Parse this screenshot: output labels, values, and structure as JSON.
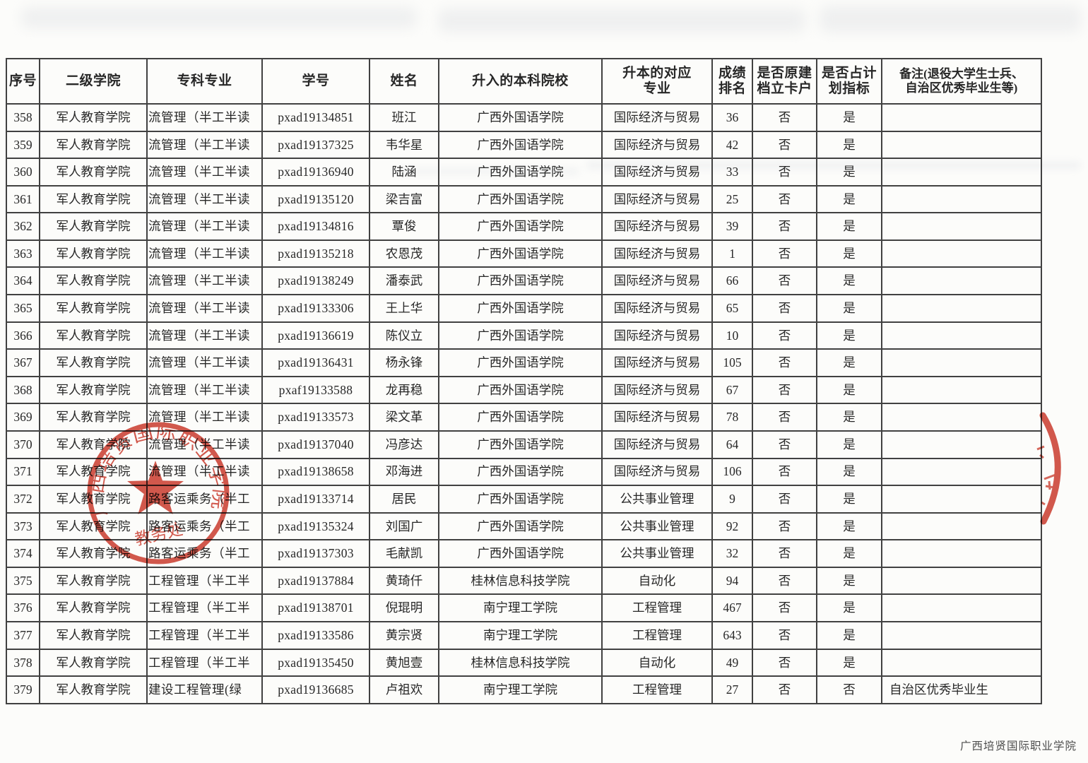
{
  "page": {
    "footer_watermark": "广西培贤国际职业学院",
    "paper_color": "#fcfcfa",
    "line_color": "#414141",
    "seal_color": "#cc392b"
  },
  "stamp": {
    "ring_text": "广西培贤国际职业学院",
    "department": "教务处"
  },
  "table": {
    "headers": [
      "序号",
      "二级学院",
      "专科专业",
      "学号",
      "姓名",
      "升入的本科院校",
      "升本的对应\n专业",
      "成绩\n排名",
      "是否原建\n档立卡户",
      "是否占计\n划指标",
      "备注(退役大学生士兵、\n自治区优秀毕业生等)"
    ],
    "rows": [
      [
        "358",
        "军人教育学院",
        "流管理（半工半读",
        "pxad19134851",
        "班江",
        "广西外国语学院",
        "国际经济与贸易",
        "36",
        "否",
        "是",
        ""
      ],
      [
        "359",
        "军人教育学院",
        "流管理（半工半读",
        "pxad19137325",
        "韦华星",
        "广西外国语学院",
        "国际经济与贸易",
        "42",
        "否",
        "是",
        ""
      ],
      [
        "360",
        "军人教育学院",
        "流管理（半工半读",
        "pxad19136940",
        "陆涵",
        "广西外国语学院",
        "国际经济与贸易",
        "33",
        "否",
        "是",
        ""
      ],
      [
        "361",
        "军人教育学院",
        "流管理（半工半读",
        "pxad19135120",
        "梁吉富",
        "广西外国语学院",
        "国际经济与贸易",
        "25",
        "否",
        "是",
        ""
      ],
      [
        "362",
        "军人教育学院",
        "流管理（半工半读",
        "pxad19134816",
        "覃俊",
        "广西外国语学院",
        "国际经济与贸易",
        "39",
        "否",
        "是",
        ""
      ],
      [
        "363",
        "军人教育学院",
        "流管理（半工半读",
        "pxad19135218",
        "农恩茂",
        "广西外国语学院",
        "国际经济与贸易",
        "1",
        "否",
        "是",
        ""
      ],
      [
        "364",
        "军人教育学院",
        "流管理（半工半读",
        "pxad19138249",
        "潘泰武",
        "广西外国语学院",
        "国际经济与贸易",
        "66",
        "否",
        "是",
        ""
      ],
      [
        "365",
        "军人教育学院",
        "流管理（半工半读",
        "pxad19133306",
        "王上华",
        "广西外国语学院",
        "国际经济与贸易",
        "65",
        "否",
        "是",
        ""
      ],
      [
        "366",
        "军人教育学院",
        "流管理（半工半读",
        "pxad19136619",
        "陈仪立",
        "广西外国语学院",
        "国际经济与贸易",
        "10",
        "否",
        "是",
        ""
      ],
      [
        "367",
        "军人教育学院",
        "流管理（半工半读",
        "pxad19136431",
        "杨永锋",
        "广西外国语学院",
        "国际经济与贸易",
        "105",
        "否",
        "是",
        ""
      ],
      [
        "368",
        "军人教育学院",
        "流管理（半工半读",
        "pxaf19133588",
        "龙再稳",
        "广西外国语学院",
        "国际经济与贸易",
        "67",
        "否",
        "是",
        ""
      ],
      [
        "369",
        "军人教育学院",
        "流管理（半工半读",
        "pxad19133573",
        "梁文革",
        "广西外国语学院",
        "国际经济与贸易",
        "78",
        "否",
        "是",
        ""
      ],
      [
        "370",
        "军人教育学院",
        "流管理（半工半读",
        "pxad19137040",
        "冯彦达",
        "广西外国语学院",
        "国际经济与贸易",
        "64",
        "否",
        "是",
        ""
      ],
      [
        "371",
        "军人教育学院",
        "流管理（半工半读",
        "pxad19138658",
        "邓海进",
        "广西外国语学院",
        "国际经济与贸易",
        "106",
        "否",
        "是",
        ""
      ],
      [
        "372",
        "军人教育学院",
        "路客运乘务（半工",
        "pxad19133714",
        "居民",
        "广西外国语学院",
        "公共事业管理",
        "9",
        "否",
        "是",
        ""
      ],
      [
        "373",
        "军人教育学院",
        "路客运乘务（半工",
        "pxad19135324",
        "刘国广",
        "广西外国语学院",
        "公共事业管理",
        "92",
        "否",
        "是",
        ""
      ],
      [
        "374",
        "军人教育学院",
        "路客运乘务（半工",
        "pxad19137303",
        "毛献凯",
        "广西外国语学院",
        "公共事业管理",
        "32",
        "否",
        "是",
        ""
      ],
      [
        "375",
        "军人教育学院",
        "工程管理（半工半",
        "pxad19137884",
        "黄琦仟",
        "桂林信息科技学院",
        "自动化",
        "94",
        "否",
        "是",
        ""
      ],
      [
        "376",
        "军人教育学院",
        "工程管理（半工半",
        "pxad19138701",
        "倪琨明",
        "南宁理工学院",
        "工程管理",
        "467",
        "否",
        "是",
        ""
      ],
      [
        "377",
        "军人教育学院",
        "工程管理（半工半",
        "pxad19133586",
        "黄宗贤",
        "南宁理工学院",
        "工程管理",
        "643",
        "否",
        "是",
        ""
      ],
      [
        "378",
        "军人教育学院",
        "工程管理（半工半",
        "pxad19135450",
        "黄旭壹",
        "桂林信息科技学院",
        "自动化",
        "49",
        "否",
        "是",
        ""
      ],
      [
        "379",
        "军人教育学院",
        "建设工程管理(绿",
        "pxad19136685",
        "卢祖欢",
        "南宁理工学院",
        "工程管理",
        "27",
        "否",
        "否",
        "自治区优秀毕业生"
      ]
    ]
  }
}
